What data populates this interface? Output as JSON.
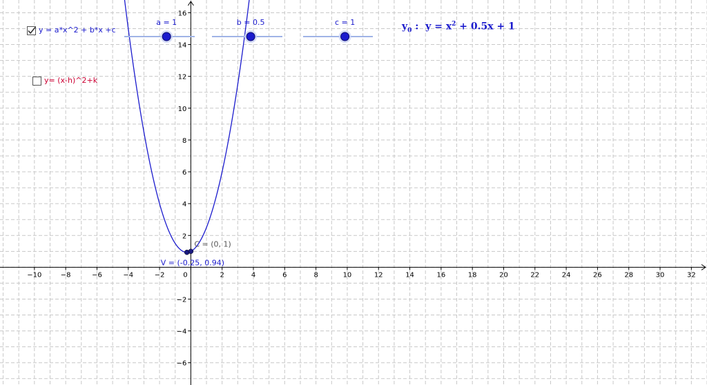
{
  "view": {
    "xmin": -12.2,
    "xmax": 33.0,
    "ymin": -7.4,
    "ymax": 16.8,
    "grid": true,
    "grid_color": "#c8c8c8",
    "axis_color": "#000000"
  },
  "axes": {
    "x_ticks": [
      -10,
      -8,
      -6,
      -4,
      -2,
      0,
      2,
      4,
      6,
      8,
      10,
      12,
      14,
      16,
      18,
      20,
      22,
      24,
      26,
      28,
      30,
      32
    ],
    "x_tick_labels": [
      "−10",
      "−8",
      "−6",
      "−4",
      "−2",
      "0",
      "2",
      "4",
      "6",
      "8",
      "10",
      "12",
      "14",
      "16",
      "18",
      "20",
      "22",
      "24",
      "26",
      "28",
      "30",
      "32"
    ],
    "y_ticks": [
      -6,
      -4,
      -2,
      2,
      4,
      6,
      8,
      10,
      12,
      14,
      16
    ],
    "y_tick_labels": [
      "−6",
      "−4",
      "−2",
      "2",
      "4",
      "6",
      "8",
      "10",
      "12",
      "14",
      "16"
    ]
  },
  "checkboxes": [
    {
      "label": "y = a*x^2 + b*x +c",
      "checked": true,
      "color": "#1a1acd"
    },
    {
      "label": "y= (x-h)^2+k",
      "checked": false,
      "color": "#cc0033"
    }
  ],
  "sliders": [
    {
      "label": "a = 1",
      "value": 1,
      "min": -5,
      "max": 5
    },
    {
      "label": "b = 0.5",
      "value": 0.5,
      "min": -5,
      "max": 5
    },
    {
      "label": "c = 1",
      "value": 1,
      "min": -5,
      "max": 5
    }
  ],
  "formula": {
    "name": "y",
    "subscript": "0",
    "lhs": "y = x",
    "power": "2",
    "rhs": " + 0.5x + 1"
  },
  "curve": {
    "a": 1,
    "b": 0.5,
    "c": 1,
    "color": "#1a1acd"
  },
  "points": [
    {
      "label": "V = (-0.25, 0.94)",
      "x": -0.25,
      "y": 0.94
    },
    {
      "label": "C = (0, 1)",
      "x": 0,
      "y": 1
    }
  ],
  "colors": {
    "primary": "#1a1acd",
    "slider_line": "#9fb3e6",
    "point": "#1a1a80",
    "label_gray": "#555555"
  }
}
